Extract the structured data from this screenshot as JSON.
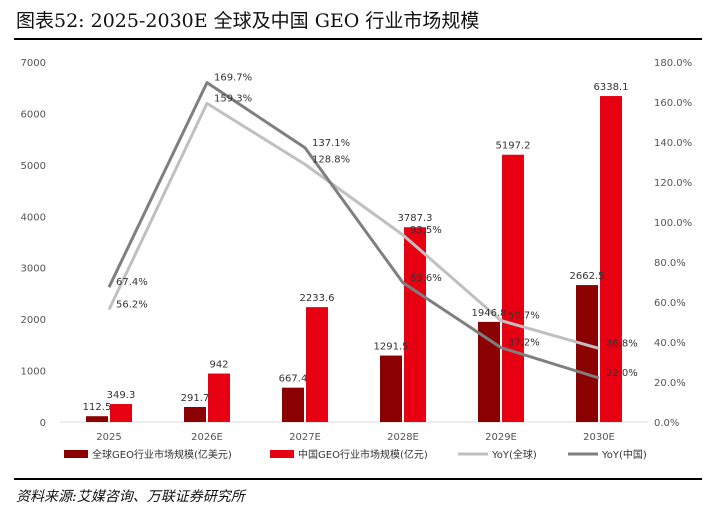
{
  "header": {
    "title": "图表52:  2025-2030E 全球及中国 GEO 行业市场规模"
  },
  "footer": {
    "source": "资料来源:艾媒咨询、万联证券研究所"
  },
  "colors": {
    "global_bar": "#8b0000",
    "china_bar": "#e60012",
    "yoy_global": "#c0c0c0",
    "yoy_china": "#7f7f7f",
    "axis": "#d9d9d9"
  },
  "chart_data": {
    "type": "bar",
    "categories": [
      "2025",
      "2026E",
      "2027E",
      "2028E",
      "2029E",
      "2030E"
    ],
    "y_left_lim": [
      0,
      7000
    ],
    "y_left_ticks": [
      "0",
      "1000",
      "2000",
      "3000",
      "4000",
      "5000",
      "6000",
      "7000"
    ],
    "y_right_lim": [
      0,
      180
    ],
    "y_right_ticks": [
      "0.0%",
      "20.0%",
      "40.0%",
      "60.0%",
      "80.0%",
      "100.0%",
      "120.0%",
      "140.0%",
      "160.0%",
      "180.0%"
    ],
    "grid": false,
    "legend_position": "bottom",
    "bars": [
      {
        "name": "全球GEO行业市场规模(亿美元)",
        "values": [
          112.5,
          291.7,
          667.4,
          1291.5,
          1946.8,
          2662.5
        ],
        "labels": [
          "112.5",
          "291.7",
          "667.4",
          "1291.5",
          "1946.8",
          "2662.5"
        ]
      },
      {
        "name": "中国GEO行业市场规模(亿元)",
        "values": [
          349.3,
          942,
          2233.6,
          3787.3,
          5197.2,
          6338.1
        ],
        "labels": [
          "349.3",
          "942",
          "2233.6",
          "3787.3",
          "5197.2",
          "6338.1"
        ]
      }
    ],
    "lines": [
      {
        "name": "YoY(全球)",
        "values": [
          56.2,
          159.3,
          128.8,
          93.5,
          50.7,
          36.8
        ],
        "labels": [
          "56.2%",
          "159.3%",
          "128.8%",
          "93.5%",
          "50.7%",
          "36.8%"
        ]
      },
      {
        "name": "YoY(中国)",
        "values": [
          67.4,
          169.7,
          137.1,
          69.6,
          37.2,
          22.0
        ],
        "labels": [
          "67.4%",
          "169.7%",
          "137.1%",
          "69.6%",
          "37.2%",
          "22.0%"
        ]
      }
    ]
  }
}
